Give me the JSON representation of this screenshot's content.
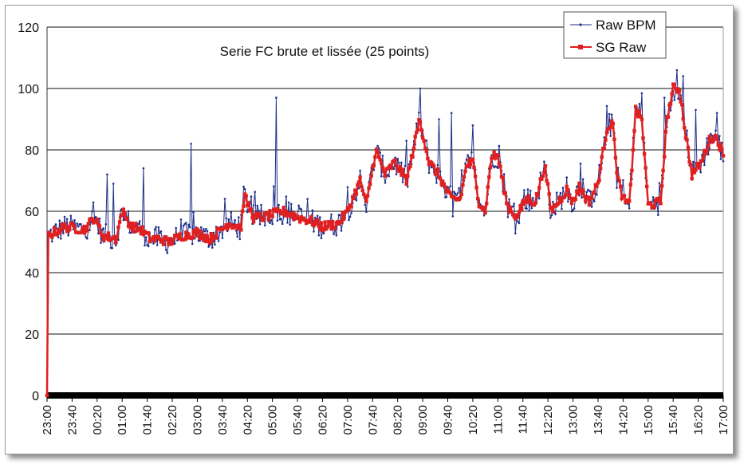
{
  "chart_data": {
    "type": "line",
    "title": "Serie FC brute et lissée (25 points)",
    "xlabel": "",
    "ylabel": "",
    "ylim": [
      0,
      120
    ],
    "yticks": [
      0,
      20,
      40,
      60,
      80,
      100,
      120
    ],
    "grid": "horizontal",
    "legend": "top-right",
    "x_categories": [
      "23:00",
      "23:40",
      "00:20",
      "01:00",
      "01:40",
      "02:20",
      "03:00",
      "03:40",
      "04:20",
      "05:00",
      "05:40",
      "06:20",
      "07:00",
      "07:40",
      "08:20",
      "09:00",
      "09:40",
      "10:20",
      "11:00",
      "11:40",
      "12:20",
      "13:00",
      "13:40",
      "14:20",
      "15:00",
      "15:40",
      "16:20",
      "17:00"
    ],
    "sample_interval_minutes": 2,
    "series": [
      {
        "name": "Raw BPM",
        "color": "#1f2f8a",
        "marker": "dot",
        "anchors": [
          [
            0,
            0
          ],
          [
            1,
            52
          ],
          [
            10,
            53
          ],
          [
            30,
            55
          ],
          [
            60,
            54
          ],
          [
            75,
            58
          ],
          [
            90,
            52
          ],
          [
            110,
            51
          ],
          [
            120,
            60
          ],
          [
            135,
            55
          ],
          [
            150,
            54
          ],
          [
            165,
            51
          ],
          [
            180,
            51
          ],
          [
            195,
            50
          ],
          [
            215,
            52
          ],
          [
            240,
            53
          ],
          [
            260,
            51
          ],
          [
            290,
            56
          ],
          [
            310,
            55
          ],
          [
            315,
            65
          ],
          [
            330,
            58
          ],
          [
            345,
            58
          ],
          [
            360,
            59
          ],
          [
            380,
            60
          ],
          [
            400,
            58
          ],
          [
            420,
            57
          ],
          [
            440,
            55
          ],
          [
            465,
            56
          ],
          [
            480,
            60
          ],
          [
            500,
            70
          ],
          [
            510,
            62
          ],
          [
            525,
            80
          ],
          [
            540,
            72
          ],
          [
            555,
            76
          ],
          [
            575,
            70
          ],
          [
            585,
            80
          ],
          [
            595,
            90
          ],
          [
            610,
            76
          ],
          [
            625,
            72
          ],
          [
            645,
            64
          ],
          [
            660,
            64
          ],
          [
            670,
            75
          ],
          [
            680,
            76
          ],
          [
            690,
            63
          ],
          [
            700,
            60
          ],
          [
            710,
            78
          ],
          [
            720,
            78
          ],
          [
            735,
            62
          ],
          [
            750,
            58
          ],
          [
            765,
            64
          ],
          [
            780,
            63
          ],
          [
            795,
            75
          ],
          [
            805,
            60
          ],
          [
            820,
            64
          ],
          [
            830,
            67
          ],
          [
            840,
            63
          ],
          [
            850,
            68
          ],
          [
            865,
            63
          ],
          [
            880,
            69
          ],
          [
            895,
            88
          ],
          [
            905,
            88
          ],
          [
            910,
            72
          ],
          [
            920,
            64
          ],
          [
            930,
            62
          ],
          [
            940,
            93
          ],
          [
            950,
            90
          ],
          [
            960,
            62
          ],
          [
            980,
            63
          ],
          [
            990,
            90
          ],
          [
            1000,
            100
          ],
          [
            1010,
            100
          ],
          [
            1020,
            85
          ],
          [
            1030,
            72
          ],
          [
            1045,
            76
          ],
          [
            1060,
            84
          ],
          [
            1070,
            84
          ],
          [
            1080,
            78
          ]
        ],
        "spikes": [
          [
            96,
            72
          ],
          [
            105,
            69
          ],
          [
            153,
            74
          ],
          [
            230,
            82
          ],
          [
            314,
            68
          ],
          [
            365,
            97
          ],
          [
            415,
            64
          ],
          [
            595,
            100
          ],
          [
            625,
            90
          ],
          [
            645,
            92
          ],
          [
            680,
            88
          ],
          [
            945,
            95
          ],
          [
            985,
            97
          ],
          [
            1005,
            106
          ],
          [
            1015,
            104
          ],
          [
            1035,
            93
          ],
          [
            1070,
            92
          ]
        ]
      },
      {
        "name": "SG Raw",
        "color": "#e02020",
        "marker": "square",
        "anchors": [
          [
            0,
            0
          ],
          [
            1,
            52
          ],
          [
            10,
            53
          ],
          [
            30,
            55
          ],
          [
            60,
            54
          ],
          [
            75,
            58
          ],
          [
            90,
            52
          ],
          [
            110,
            51
          ],
          [
            120,
            60
          ],
          [
            135,
            55
          ],
          [
            150,
            54
          ],
          [
            165,
            51
          ],
          [
            180,
            51
          ],
          [
            195,
            50
          ],
          [
            215,
            52
          ],
          [
            240,
            53
          ],
          [
            260,
            51
          ],
          [
            290,
            56
          ],
          [
            310,
            55
          ],
          [
            315,
            65
          ],
          [
            330,
            58
          ],
          [
            345,
            58
          ],
          [
            360,
            59
          ],
          [
            380,
            60
          ],
          [
            400,
            58
          ],
          [
            420,
            57
          ],
          [
            440,
            55
          ],
          [
            465,
            56
          ],
          [
            480,
            60
          ],
          [
            500,
            70
          ],
          [
            510,
            62
          ],
          [
            525,
            80
          ],
          [
            540,
            72
          ],
          [
            555,
            76
          ],
          [
            575,
            70
          ],
          [
            585,
            80
          ],
          [
            595,
            90
          ],
          [
            610,
            76
          ],
          [
            625,
            72
          ],
          [
            645,
            64
          ],
          [
            660,
            64
          ],
          [
            670,
            75
          ],
          [
            680,
            76
          ],
          [
            690,
            63
          ],
          [
            700,
            60
          ],
          [
            710,
            78
          ],
          [
            720,
            78
          ],
          [
            735,
            62
          ],
          [
            750,
            58
          ],
          [
            765,
            64
          ],
          [
            780,
            63
          ],
          [
            795,
            75
          ],
          [
            805,
            60
          ],
          [
            820,
            64
          ],
          [
            830,
            67
          ],
          [
            840,
            63
          ],
          [
            850,
            68
          ],
          [
            865,
            63
          ],
          [
            880,
            69
          ],
          [
            895,
            88
          ],
          [
            905,
            88
          ],
          [
            910,
            72
          ],
          [
            920,
            64
          ],
          [
            930,
            62
          ],
          [
            940,
            93
          ],
          [
            950,
            90
          ],
          [
            960,
            62
          ],
          [
            980,
            63
          ],
          [
            990,
            90
          ],
          [
            1000,
            100
          ],
          [
            1010,
            100
          ],
          [
            1020,
            85
          ],
          [
            1030,
            72
          ],
          [
            1045,
            76
          ],
          [
            1060,
            84
          ],
          [
            1070,
            84
          ],
          [
            1080,
            78
          ]
        ]
      }
    ]
  }
}
